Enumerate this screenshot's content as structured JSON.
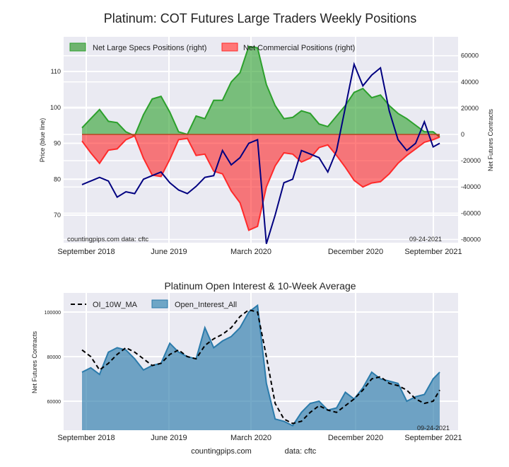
{
  "chart_data": [
    {
      "type": "area",
      "title": "Platinum: COT Futures Large Traders Weekly Positions",
      "ylabel_left": "Price (blue line)",
      "ylabel_right": "Net Futures Contracts",
      "xlabel": "",
      "x_ticks": [
        "September 2018",
        "June 2019",
        "March 2020",
        "December 2020",
        "September 2021"
      ],
      "y_left_ticks": [
        70,
        80,
        90,
        100,
        110
      ],
      "y_left_range": [
        62,
        118
      ],
      "y_right_ticks": [
        -80000,
        -60000,
        -40000,
        -20000,
        0,
        20000,
        40000,
        60000
      ],
      "y_right_range": [
        -82000,
        74000
      ],
      "grid": true,
      "legend_position": "top-left",
      "legend": [
        "Net Large Specs Positions (right)",
        "Net Commercial Positions (right)"
      ],
      "annotations": [
        "countingpips.com   data: cftc",
        "09-24-2021"
      ],
      "x_weeks": [
        0,
        4,
        8,
        12,
        16,
        20,
        24,
        28,
        32,
        36,
        40,
        44,
        48,
        52,
        56,
        60,
        64,
        68,
        72,
        76,
        80,
        84,
        88,
        92,
        96,
        100,
        104,
        108,
        112,
        116,
        120,
        124,
        128,
        132,
        136,
        140,
        144,
        148,
        152,
        156,
        160,
        163
      ],
      "series": [
        {
          "name": "Net Large Specs Positions (right)",
          "color": "#2ca02c",
          "values": [
            5000,
            12000,
            19000,
            10000,
            9000,
            2000,
            -1000,
            15000,
            27000,
            29000,
            17000,
            2000,
            0,
            14000,
            12000,
            26000,
            26000,
            40000,
            47000,
            67000,
            66000,
            38000,
            22000,
            12000,
            13000,
            18000,
            16000,
            8000,
            6000,
            14000,
            22000,
            32000,
            35000,
            28000,
            30000,
            22000,
            16000,
            12000,
            7000,
            2000,
            2000,
            -2000
          ]
        },
        {
          "name": "Net Commercial Positions (right)",
          "color": "#ff2a2a",
          "values": [
            -5000,
            -14000,
            -22000,
            -12000,
            -11000,
            -4000,
            -1000,
            -18000,
            -31000,
            -32000,
            -19000,
            -4000,
            -3000,
            -16000,
            -15000,
            -28000,
            -30000,
            -43000,
            -52000,
            -73000,
            -70000,
            -40000,
            -24000,
            -14000,
            -15000,
            -21000,
            -18000,
            -10000,
            -8000,
            -16000,
            -25000,
            -35000,
            -40000,
            -37000,
            -36000,
            -30000,
            -22000,
            -16000,
            -11000,
            -6000,
            -4000,
            -2000
          ]
        },
        {
          "name": "Price (blue line)",
          "color": "#000080",
          "values": [
            78.5,
            79.5,
            80.5,
            79.5,
            75,
            76.5,
            76,
            80,
            81,
            82,
            79,
            77,
            76,
            78,
            80.5,
            81,
            88,
            84,
            86,
            90,
            91,
            62,
            70,
            79,
            80,
            88,
            87,
            86,
            82,
            88,
            100,
            112,
            106,
            109,
            111,
            99,
            91,
            88,
            90,
            96,
            89,
            90
          ]
        }
      ]
    },
    {
      "type": "area",
      "title": "Platinum Open Interest & 10-Week Average",
      "ylabel": "Net Futures Contracts",
      "xlabel": "",
      "x_ticks": [
        "September 2018",
        "June 2019",
        "March 2020",
        "December 2020",
        "September 2021"
      ],
      "y_ticks": [
        60000,
        80000,
        100000
      ],
      "y_range": [
        46000,
        108000
      ],
      "grid": true,
      "legend_position": "top-left",
      "legend": [
        "OI_10W_MA",
        "Open_Interest_All"
      ],
      "annotations": [
        "09-24-2021"
      ],
      "x_weeks": [
        0,
        4,
        8,
        12,
        16,
        20,
        24,
        28,
        32,
        36,
        40,
        44,
        48,
        52,
        56,
        60,
        64,
        68,
        72,
        76,
        80,
        84,
        88,
        92,
        96,
        100,
        104,
        108,
        112,
        116,
        120,
        124,
        128,
        132,
        136,
        140,
        144,
        148,
        152,
        156,
        160,
        163
      ],
      "series": [
        {
          "name": "Open_Interest_All",
          "color": "#2b7bab",
          "values": [
            73000,
            75000,
            72000,
            82000,
            84000,
            83000,
            79000,
            74000,
            76000,
            77000,
            86000,
            82000,
            80000,
            79000,
            93000,
            84000,
            87000,
            89000,
            93000,
            100000,
            103000,
            68000,
            52000,
            51000,
            49000,
            55000,
            59000,
            60000,
            56000,
            57000,
            64000,
            61000,
            66000,
            73000,
            70000,
            69000,
            68000,
            60000,
            62000,
            63000,
            70000,
            73000
          ]
        },
        {
          "name": "OI_10W_MA",
          "color": "#000000",
          "values": [
            83000,
            80000,
            74000,
            77000,
            81000,
            84000,
            82000,
            79000,
            76000,
            77000,
            81000,
            83000,
            80000,
            79000,
            85000,
            88000,
            90000,
            93000,
            98000,
            101000,
            100000,
            80000,
            59000,
            52000,
            50000,
            51000,
            55000,
            58000,
            56000,
            55000,
            58000,
            61000,
            65000,
            70000,
            71000,
            68000,
            67000,
            65000,
            61000,
            59000,
            60000,
            65000
          ]
        }
      ]
    }
  ],
  "footer": {
    "site": "countingpips.com",
    "source": "data: cftc"
  }
}
